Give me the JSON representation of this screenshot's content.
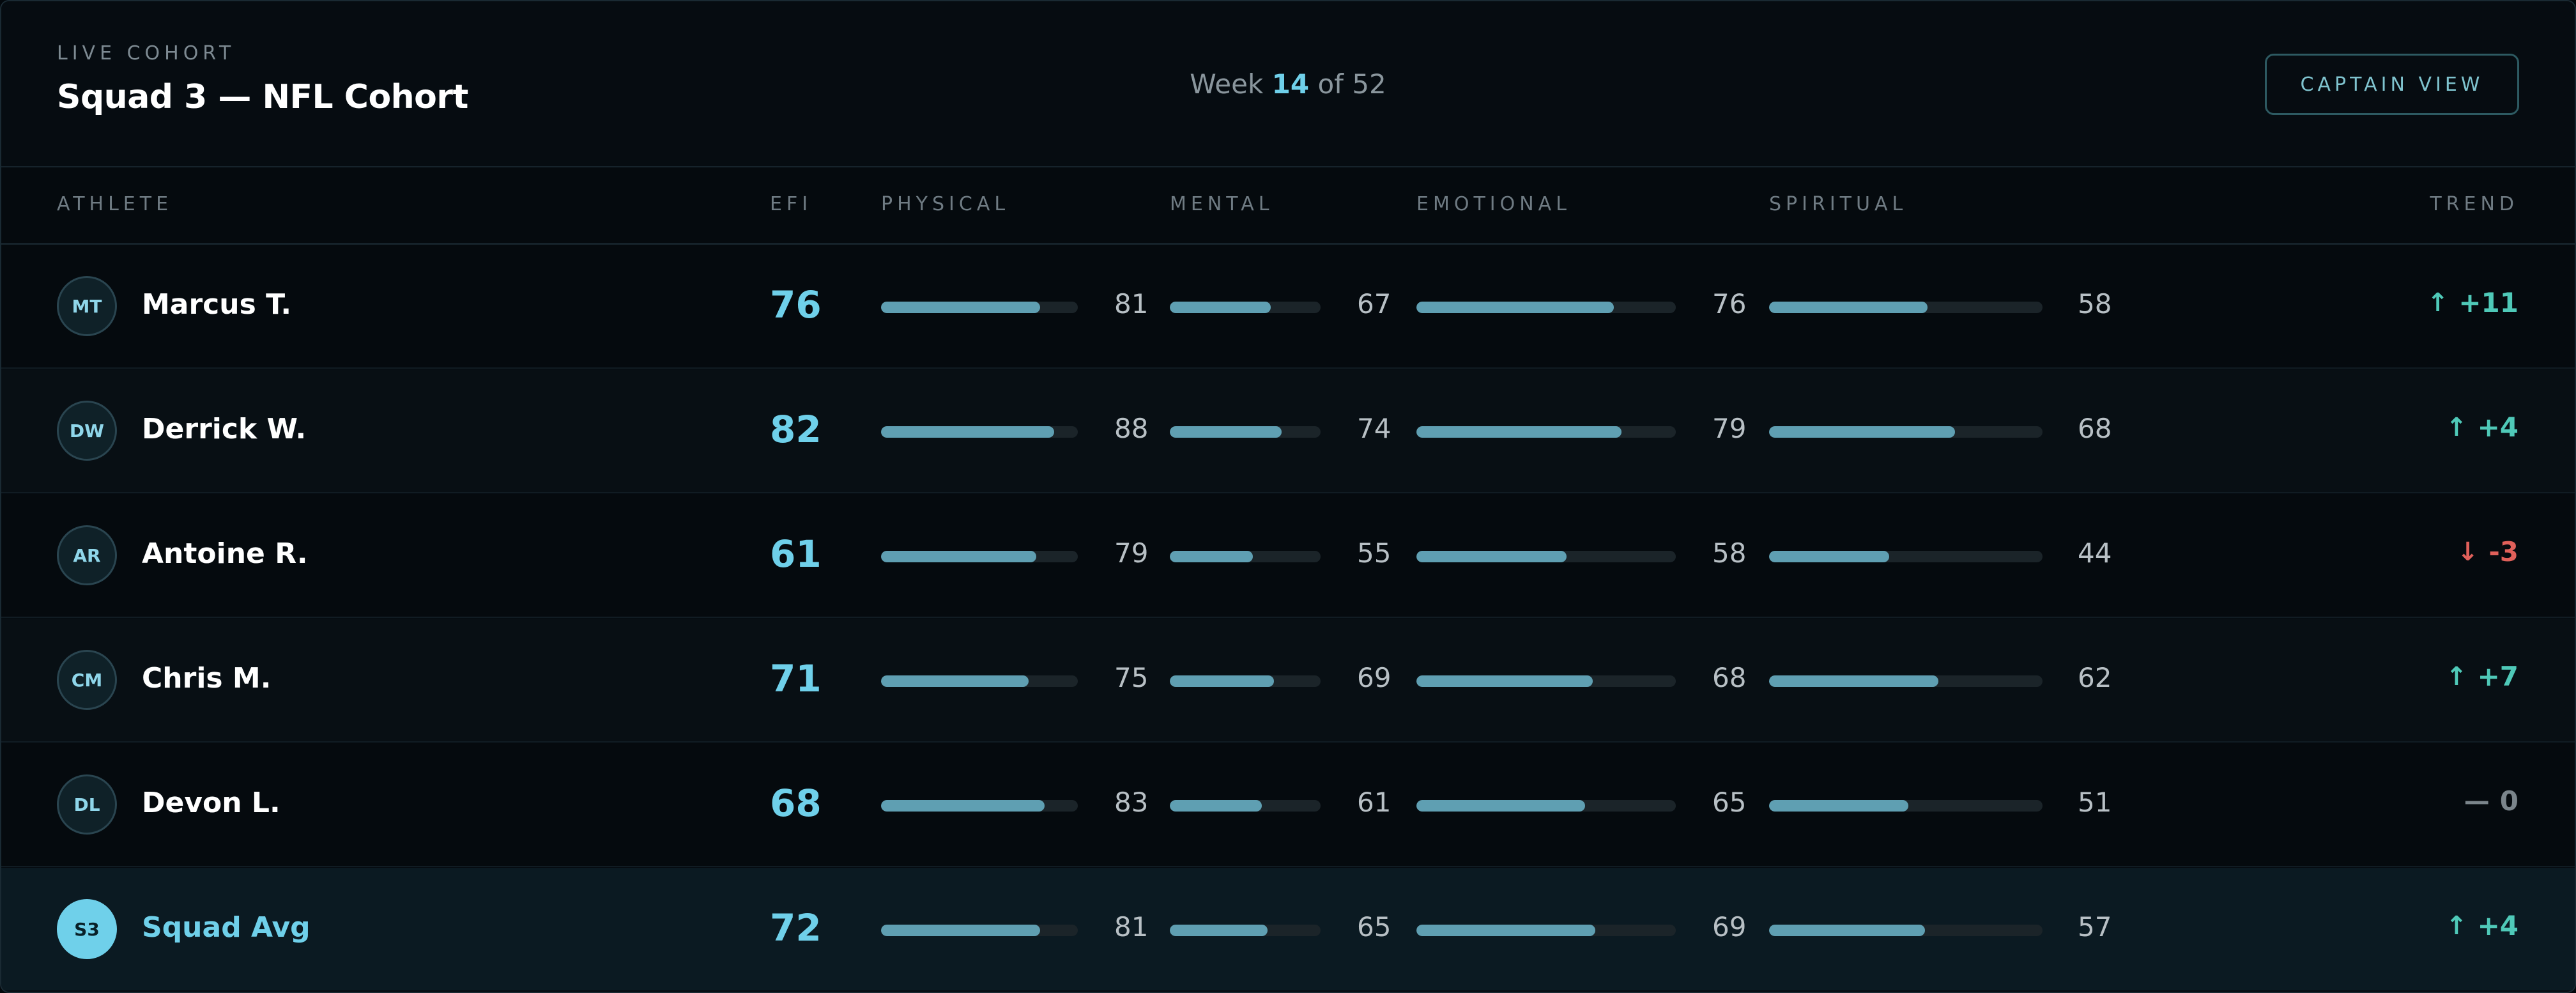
{
  "header": {
    "eyebrow": "LIVE COHORT",
    "title": "Squad 3 — NFL Cohort",
    "week_label": "Week",
    "week_current": "14",
    "week_of": "of 52",
    "captain_button": "CAPTAIN VIEW"
  },
  "columns": {
    "athlete": "ATHLETE",
    "efi": "EFI",
    "physical": "PHYSICAL",
    "mental": "MENTAL",
    "emotional": "EMOTIONAL",
    "spiritual": "SPIRITUAL",
    "trend": "TREND"
  },
  "colors": {
    "accent": "#6fd0ea",
    "bar": "#5f9fb2",
    "up": "#4fc9b8",
    "down": "#e0605a",
    "flat": "#7b858b"
  },
  "rows": [
    {
      "initials": "MT",
      "name": "Marcus T.",
      "efi": "76",
      "physical": "81",
      "mental": "67",
      "emotional": "76",
      "spiritual": "58",
      "trend_dir": "up",
      "trend_icon": "arrow-up-icon",
      "trend_value": "+11"
    },
    {
      "initials": "DW",
      "name": "Derrick W.",
      "efi": "82",
      "physical": "88",
      "mental": "74",
      "emotional": "79",
      "spiritual": "68",
      "trend_dir": "up",
      "trend_icon": "arrow-up-icon",
      "trend_value": "+4"
    },
    {
      "initials": "AR",
      "name": "Antoine R.",
      "efi": "61",
      "physical": "79",
      "mental": "55",
      "emotional": "58",
      "spiritual": "44",
      "trend_dir": "down",
      "trend_icon": "arrow-down-icon",
      "trend_value": "-3"
    },
    {
      "initials": "CM",
      "name": "Chris M.",
      "efi": "71",
      "physical": "75",
      "mental": "69",
      "emotional": "68",
      "spiritual": "62",
      "trend_dir": "up",
      "trend_icon": "arrow-up-icon",
      "trend_value": "+7"
    },
    {
      "initials": "DL",
      "name": "Devon L.",
      "efi": "68",
      "physical": "83",
      "mental": "61",
      "emotional": "65",
      "spiritual": "51",
      "trend_dir": "flat",
      "trend_icon": "dash-icon",
      "trend_value": "0"
    },
    {
      "initials": "S3",
      "name": "Squad Avg",
      "efi": "72",
      "physical": "81",
      "mental": "65",
      "emotional": "69",
      "spiritual": "57",
      "trend_dir": "up",
      "trend_icon": "arrow-up-icon",
      "trend_value": "+4"
    }
  ]
}
